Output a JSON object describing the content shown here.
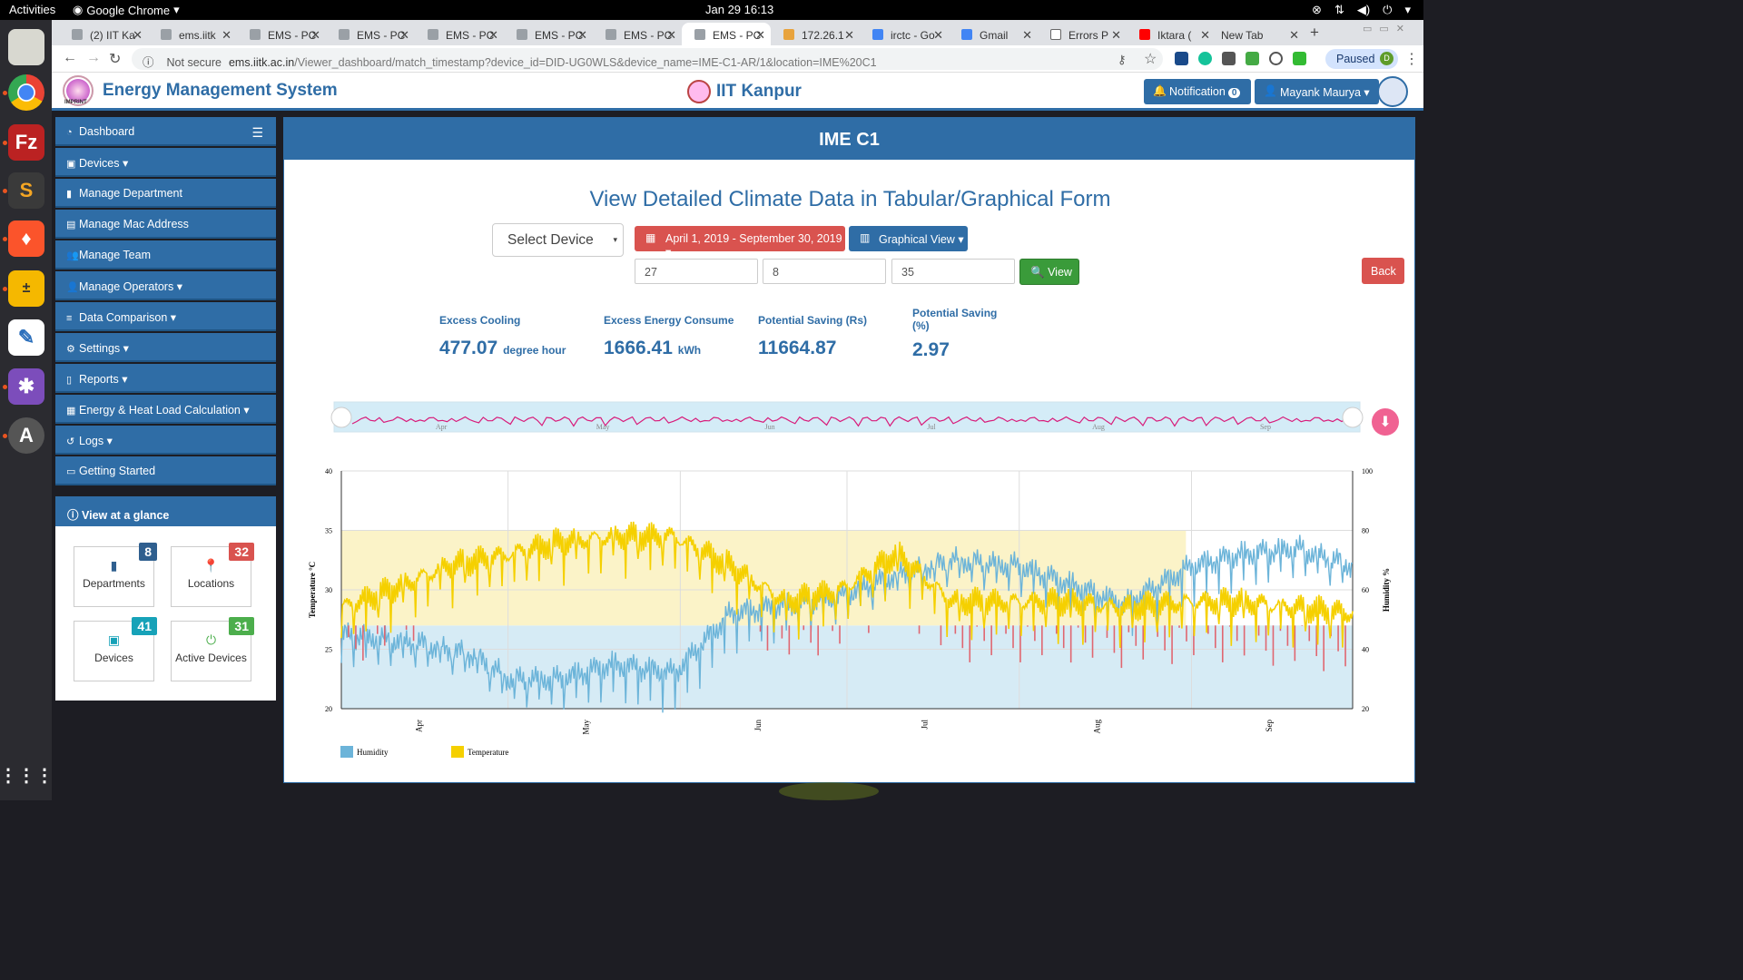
{
  "topbar": {
    "activities": "Activities",
    "app": "Google Chrome",
    "clock": "Jan 29  16:13"
  },
  "tabs": [
    {
      "label": "(2) IIT Ka",
      "active": false
    },
    {
      "label": "ems.iitk",
      "active": false
    },
    {
      "label": "EMS - PC",
      "active": false
    },
    {
      "label": "EMS - PC",
      "active": false
    },
    {
      "label": "EMS - PC",
      "active": false
    },
    {
      "label": "EMS - PC",
      "active": false
    },
    {
      "label": "EMS - PC",
      "active": false
    },
    {
      "label": "EMS - PC",
      "active": true
    },
    {
      "label": "172.26.1",
      "active": false
    },
    {
      "label": "irctc - Go",
      "active": false
    },
    {
      "label": "Gmail",
      "active": false
    },
    {
      "label": "Errors P",
      "active": false
    },
    {
      "label": "Iktara (",
      "active": false
    },
    {
      "label": "New Tab",
      "active": false
    }
  ],
  "address": {
    "not_secure": "Not secure",
    "host": "ems.iitk.ac.in",
    "path": "/Viewer_dashboard/match_timestamp?device_id=DID-UG0WLS&device_name=IME-C1-AR/1&location=IME%20C1",
    "paused": "Paused",
    "profile": "D"
  },
  "header": {
    "title": "Energy Management System",
    "logo_text": "IMPRINT",
    "institute": "IIT Kanpur",
    "notification_label": "Notification",
    "notification_count": "0",
    "user": "Mayank Maurya"
  },
  "sidebar": {
    "items": [
      {
        "label": "Dashboard",
        "icon": "dashboard-icon"
      },
      {
        "label": "Devices",
        "icon": "briefcase-icon"
      },
      {
        "label": "Manage Department",
        "icon": "building-icon"
      },
      {
        "label": "Manage Mac Address",
        "icon": "card-icon"
      },
      {
        "label": "Manage Team",
        "icon": "users-icon"
      },
      {
        "label": "Manage Operators",
        "icon": "user-icon"
      },
      {
        "label": "Data Comparison",
        "icon": "list-icon"
      },
      {
        "label": "Settings",
        "icon": "gear-icon"
      },
      {
        "label": "Reports",
        "icon": "file-icon"
      },
      {
        "label": "Energy & Heat Load Calculation",
        "icon": "calendar-icon"
      },
      {
        "label": "Logs",
        "icon": "history-icon"
      },
      {
        "label": "Getting Started",
        "icon": "laptop-icon"
      }
    ]
  },
  "glance": {
    "title": "View at a glance",
    "cards": [
      {
        "label": "Departments",
        "count": "8",
        "color": "#2f5f8f"
      },
      {
        "label": "Locations",
        "count": "32",
        "color": "#d9534f"
      },
      {
        "label": "Devices",
        "count": "41",
        "color": "#17a2b8"
      },
      {
        "label": "Active Devices",
        "count": "31",
        "color": "#4cae4c"
      }
    ]
  },
  "main": {
    "heading": "IME C1",
    "subtitle": "View Detailed Climate Data in Tabular/Graphical Form",
    "select_device": "Select Device",
    "date_range": "April 1, 2019 - September 30, 2019",
    "view_mode": "Graphical View",
    "inputs": [
      "27",
      "8",
      "35"
    ],
    "view_button": "View",
    "back_button": "Back",
    "stats": [
      {
        "label": "Excess Cooling",
        "value": "477.07",
        "unit": "degree hour"
      },
      {
        "label": "Excess Energy Consume",
        "value": "1666.41",
        "unit": "kWh"
      },
      {
        "label": "Potential Saving (Rs)",
        "value": "11664.87",
        "unit": ""
      },
      {
        "label": "Potential Saving (%)",
        "value": "2.97",
        "unit": ""
      }
    ]
  },
  "chart_data": {
    "type": "line",
    "x_categories": [
      "Apr",
      "May",
      "Jun",
      "Jul",
      "Aug",
      "Sep"
    ],
    "x_range": [
      "2019-04-01",
      "2019-09-30"
    ],
    "ylabel_left": "Temperature °C",
    "ylabel_right": "Humidity %",
    "ylim_left": [
      20,
      40
    ],
    "ylim_right": [
      20,
      100
    ],
    "yticks_left": [
      20,
      25,
      30,
      35,
      40
    ],
    "yticks_right": [
      20,
      40,
      60,
      80,
      100
    ],
    "threshold_temperature": 27,
    "grid": true,
    "legend_position": "bottom-left",
    "series": [
      {
        "name": "Humidity",
        "axis": "right",
        "color": "#6cb4d9",
        "points": [
          [
            "2019-04-01",
            45
          ],
          [
            "2019-04-15",
            42
          ],
          [
            "2019-04-25",
            38
          ],
          [
            "2019-05-01",
            30
          ],
          [
            "2019-05-10",
            30
          ],
          [
            "2019-05-20",
            35
          ],
          [
            "2019-05-31",
            32
          ],
          [
            "2019-06-10",
            52
          ],
          [
            "2019-06-20",
            55
          ],
          [
            "2019-06-30",
            58
          ],
          [
            "2019-07-10",
            65
          ],
          [
            "2019-07-20",
            70
          ],
          [
            "2019-08-01",
            68
          ],
          [
            "2019-08-10",
            62
          ],
          [
            "2019-08-20",
            55
          ],
          [
            "2019-09-01",
            68
          ],
          [
            "2019-09-10",
            72
          ],
          [
            "2019-09-20",
            74
          ],
          [
            "2019-09-30",
            68
          ]
        ]
      },
      {
        "name": "Temperature",
        "axis": "left",
        "color": "#f5d000",
        "points": [
          [
            "2019-04-01",
            28.5
          ],
          [
            "2019-04-10",
            30
          ],
          [
            "2019-04-20",
            32
          ],
          [
            "2019-05-01",
            33
          ],
          [
            "2019-05-10",
            34
          ],
          [
            "2019-05-20",
            34.5
          ],
          [
            "2019-05-31",
            34.5
          ],
          [
            "2019-06-10",
            32
          ],
          [
            "2019-06-20",
            29
          ],
          [
            "2019-06-30",
            30
          ],
          [
            "2019-07-10",
            33
          ],
          [
            "2019-07-20",
            29
          ],
          [
            "2019-08-01",
            29
          ],
          [
            "2019-08-10",
            29
          ],
          [
            "2019-08-20",
            28.5
          ],
          [
            "2019-09-01",
            29
          ],
          [
            "2019-09-10",
            29
          ],
          [
            "2019-09-20",
            28.5
          ],
          [
            "2019-09-30",
            28
          ]
        ]
      }
    ]
  },
  "navigator": {
    "months": [
      "Apr",
      "May",
      "Jun",
      "Jul",
      "Aug",
      "Sep"
    ]
  }
}
